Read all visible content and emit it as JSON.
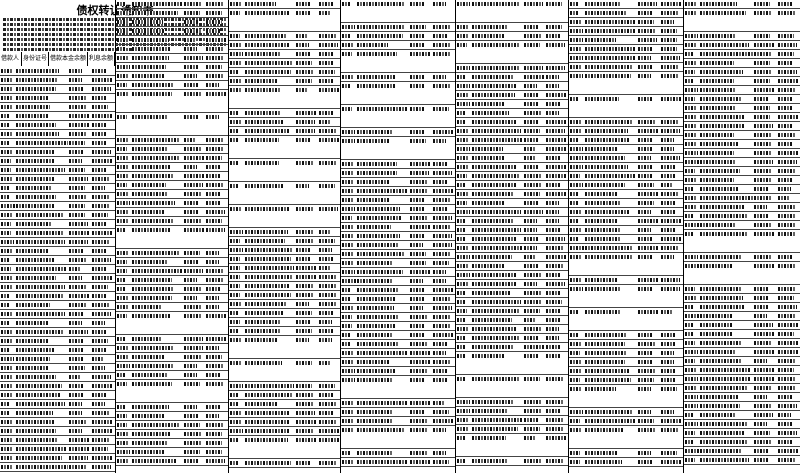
{
  "document": {
    "title": "债权转让通知书",
    "table_headers": [
      "借款人",
      "身份证号",
      "借款本金余额",
      "利息余额"
    ]
  },
  "colors": {
    "text": "#000000",
    "background": "#ffffff"
  }
}
